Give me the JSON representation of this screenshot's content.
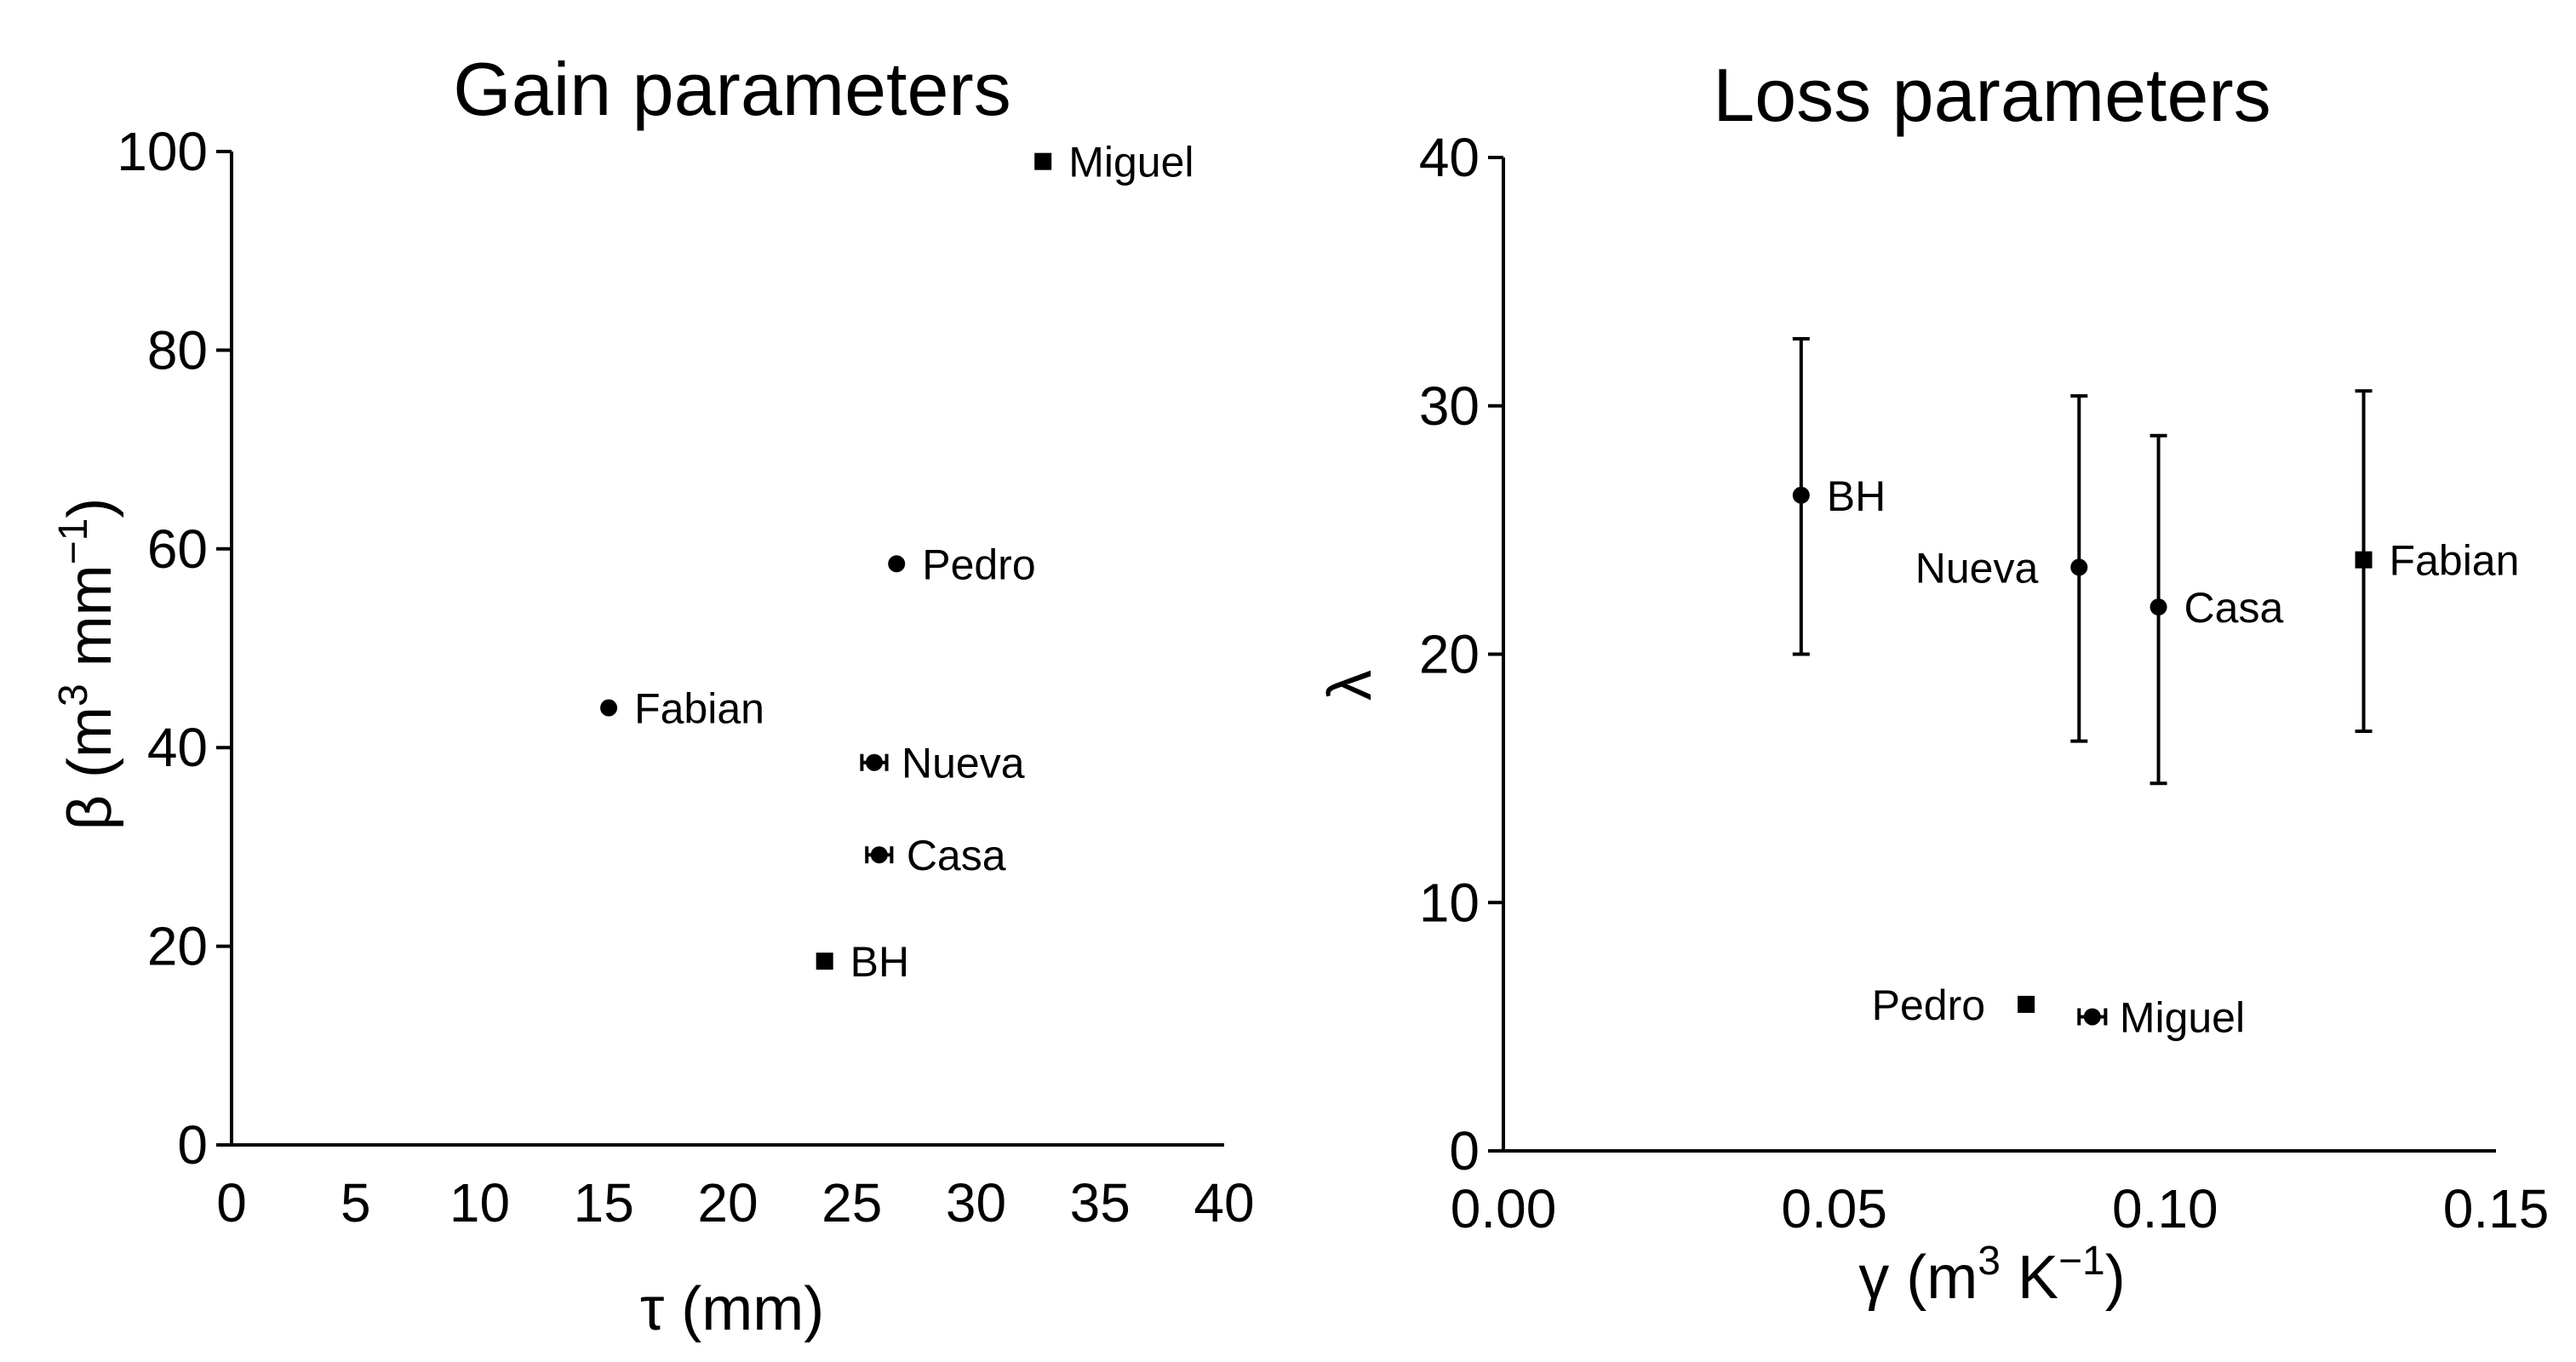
{
  "chart_data": [
    {
      "type": "scatter",
      "title": "Gain parameters",
      "xlabel": "τ (mm)",
      "ylabel": "β (m3 mm−1)",
      "ylabel_parts": {
        "symbol": "β (m",
        "sup1": "3",
        "mid": " mm",
        "sup2": "−1",
        "close": ")"
      },
      "xlim": [
        0,
        40
      ],
      "ylim": [
        0,
        100
      ],
      "xticks": [
        0,
        5,
        10,
        15,
        20,
        25,
        30,
        35,
        40
      ],
      "xtick_labels": [
        "0",
        "5",
        "10",
        "15",
        "20",
        "25",
        "30",
        "35",
        "40"
      ],
      "yticks": [
        0,
        20,
        40,
        60,
        80,
        100
      ],
      "ytick_labels": [
        "0",
        "20",
        "40",
        "60",
        "80",
        "100"
      ],
      "points": [
        {
          "label": "Miguel",
          "x": 32.7,
          "y": 99,
          "marker": "square",
          "label_side": "right"
        },
        {
          "label": "Pedro",
          "x": 26.8,
          "y": 58.5,
          "marker": "circle",
          "label_side": "right"
        },
        {
          "label": "Fabian",
          "x": 15.2,
          "y": 44,
          "marker": "circle",
          "label_side": "right"
        },
        {
          "label": "Nueva",
          "x": 25.9,
          "y": 38.5,
          "marker": "circle",
          "label_side": "right",
          "xerr": 0.5
        },
        {
          "label": "Casa",
          "x": 26.1,
          "y": 29.2,
          "marker": "circle",
          "label_side": "right",
          "xerr": 0.5
        },
        {
          "label": "BH",
          "x": 23.9,
          "y": 18.5,
          "marker": "square",
          "label_side": "right"
        }
      ]
    },
    {
      "type": "scatter",
      "title": "Loss parameters",
      "xlabel": "γ (m3 K−1)",
      "ylabel": "λ",
      "xlabel_parts": {
        "symbol": "γ (m",
        "sup1": "3",
        "mid": " K",
        "sup2": "−1",
        "close": ")"
      },
      "xlim": [
        0,
        0.15
      ],
      "ylim": [
        0,
        40
      ],
      "xticks": [
        0,
        0.05,
        0.1,
        0.15
      ],
      "xtick_labels": [
        "0.00",
        "0.05",
        "0.10",
        "0.15"
      ],
      "yticks": [
        0,
        10,
        20,
        30,
        40
      ],
      "ytick_labels": [
        "0",
        "10",
        "20",
        "30",
        "40"
      ],
      "points": [
        {
          "label": "BH",
          "x": 0.045,
          "y": 26.4,
          "marker": "circle",
          "label_side": "right",
          "yerr_low": 20,
          "yerr_high": 32.7
        },
        {
          "label": "Nueva",
          "x": 0.087,
          "y": 23.5,
          "marker": "circle",
          "label_side": "left",
          "yerr_low": 16.5,
          "yerr_high": 30.4
        },
        {
          "label": "Casa",
          "x": 0.099,
          "y": 21.9,
          "marker": "circle",
          "label_side": "right",
          "yerr_low": 14.8,
          "yerr_high": 28.8
        },
        {
          "label": "Fabian",
          "x": 0.13,
          "y": 23.8,
          "marker": "square",
          "label_side": "right",
          "yerr_low": 16.9,
          "yerr_high": 30.6
        },
        {
          "label": "Pedro",
          "x": 0.079,
          "y": 5.9,
          "marker": "square",
          "label_side": "left"
        },
        {
          "label": "Miguel",
          "x": 0.089,
          "y": 5.4,
          "marker": "circle",
          "label_side": "right",
          "xerr": 0.002
        }
      ]
    }
  ]
}
